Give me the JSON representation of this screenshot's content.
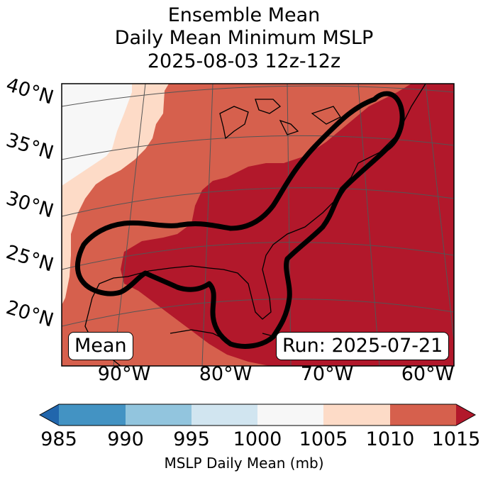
{
  "title": {
    "line1": "Ensemble Mean",
    "line2": "Daily Mean Minimum MSLP",
    "line3": "2025-08-03 12z-12z"
  },
  "latitude_labels": [
    "40°N",
    "35°N",
    "30°N",
    "25°N",
    "20°N"
  ],
  "longitude_labels": [
    "90°W",
    "80°W",
    "70°W",
    "60°W"
  ],
  "annotations": {
    "left_box": "Mean",
    "right_box": "Run: 2025-07-21"
  },
  "colorbar": {
    "ticks": [
      "985",
      "990",
      "995",
      "1000",
      "1005",
      "1010",
      "1015"
    ],
    "label": "MSLP Daily Mean (mb)",
    "colors": {
      "below": "#2166ac",
      "985-990": "#4393c3",
      "990-995": "#92c5de",
      "995-1000": "#d1e5f0",
      "1000-1005": "#f7f7f7",
      "1005-1010": "#fddbc7",
      "1010-1015": "#d6604d",
      "above": "#b2182b"
    }
  },
  "map_colors": {
    "white_1000_1005": "#f7f7f7",
    "peach_1005_1010": "#fddbc7",
    "red_1010_1015": "#d6604d",
    "darkred_above_1015": "#b2182b",
    "contour": "#000000",
    "gridline": "#555555"
  }
}
